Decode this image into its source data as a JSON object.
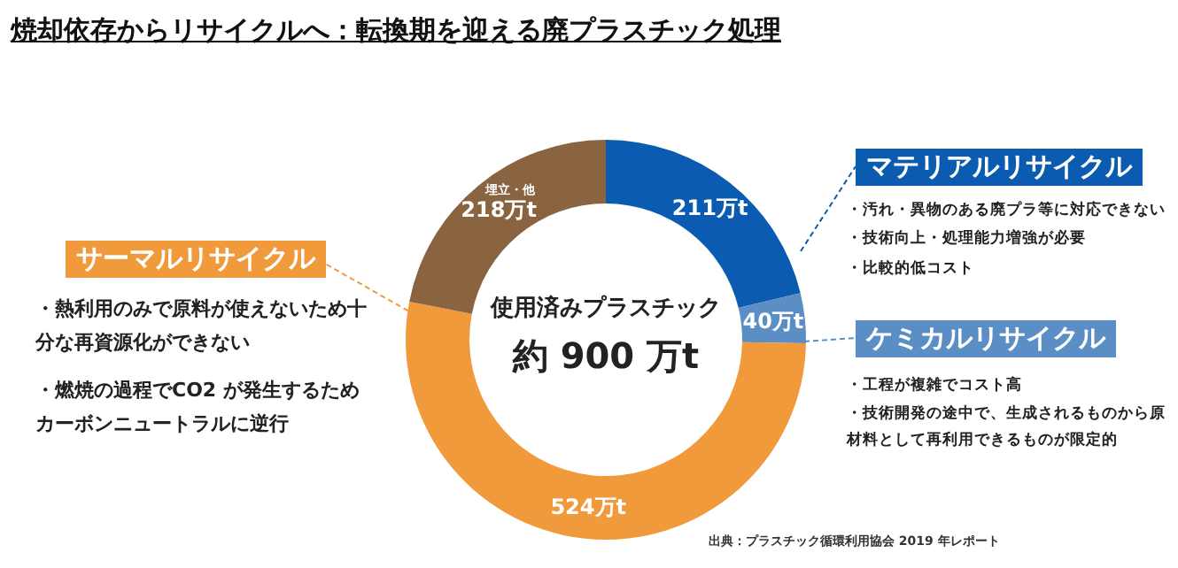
{
  "chart_data": {
    "type": "donut",
    "title": "焼却依存からリサイクルへ：転換期を迎える廃プラスチック処理",
    "categories": [
      "マテリアルリサイクル",
      "ケミカルリサイクル",
      "サーマルリサイクル",
      "埋立・他"
    ],
    "values": [
      211,
      40,
      524,
      218
    ],
    "colors": [
      "#0b5cb0",
      "#5a8ec4",
      "#f09a3c",
      "#8a6440"
    ],
    "value_labels": [
      "211万t",
      "40万t",
      "524万t",
      "218万t"
    ],
    "annotations": [
      {
        "text": "・汚れ・異物のある廃プラ等に対応できない",
        "x": "マテリアルリサイクル"
      },
      {
        "text": "・技術向上・処理能力増強が必要",
        "x": "マテリアルリサイクル"
      },
      {
        "text": "・比較的低コスト",
        "x": "マテリアルリサイクル"
      },
      {
        "text": "・工程が複雑でコスト高",
        "x": "ケミカルリサイクル"
      },
      {
        "text": "・技術開発の途中で、生成されるものから原材料として再利用できるものが限定的",
        "x": "ケミカルリサイクル"
      },
      {
        "text": "・熱利用のみで原料が使えないため十分な再資源化ができない",
        "x": "サーマルリサイクル"
      },
      {
        "text": "・燃焼の過程でCO2 が発生するためカーボンニュートラルに逆行",
        "x": "サーマルリサイクル"
      },
      "使用済みプラスチック",
      "約 900 万t",
      "出典：プラスチック循環利用協会 2019 年レポート"
    ]
  }
}
